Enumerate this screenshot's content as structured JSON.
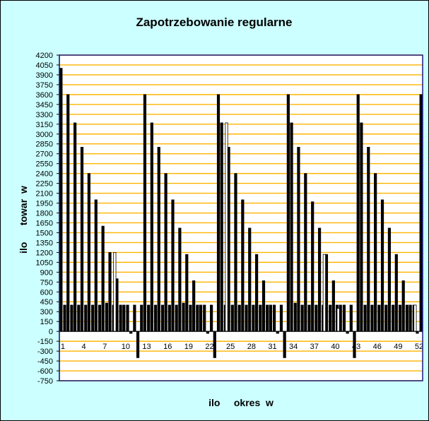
{
  "chart_data": {
    "type": "bar",
    "title": "Zapotrzebowanie regularne",
    "xlabel": "ilo     okres  w",
    "ylabel": "ilo      towar  w",
    "ylim": [
      -750,
      4200
    ],
    "y_ticks": [
      4200,
      4050,
      3900,
      3750,
      3600,
      3450,
      3300,
      3150,
      3000,
      2850,
      2700,
      2550,
      2400,
      2250,
      2100,
      1950,
      1800,
      1650,
      1500,
      1350,
      1200,
      1050,
      900,
      750,
      600,
      450,
      300,
      150,
      0,
      -150,
      -300,
      -450,
      -600,
      -750
    ],
    "x_tick_labels": [
      "1",
      "4",
      "7",
      "10",
      "13",
      "16",
      "19",
      "22",
      "25",
      "28",
      "31",
      "34",
      "37",
      "40",
      "43",
      "46",
      "49",
      "52"
    ],
    "x_tick_periods": [
      1,
      4,
      7,
      10,
      13,
      16,
      19,
      22,
      25,
      28,
      31,
      34,
      37,
      40,
      43,
      46,
      49,
      52
    ],
    "grid": true,
    "legend": "none",
    "colors": {
      "background": "#ccffff",
      "plot_area": "#ffffff",
      "grid": "#ffb400",
      "axis": "#000000",
      "plot_border": "#1a1a80",
      "bar_outline": "#000000"
    },
    "categories": [
      1,
      2,
      3,
      4,
      5,
      6,
      7,
      8,
      9,
      10,
      11,
      12,
      13,
      14,
      15,
      16,
      17,
      18,
      19,
      20,
      21,
      22,
      23,
      24,
      25,
      26,
      27,
      28,
      29,
      30,
      31,
      32,
      33,
      34,
      35,
      36,
      37,
      38,
      39,
      40,
      41,
      42,
      43,
      44,
      45,
      46,
      47,
      48,
      49,
      50,
      51,
      52
    ],
    "series": [
      {
        "fill": "#000000",
        "values": [
          4000,
          3600,
          3170,
          2800,
          2400,
          2000,
          1600,
          1200,
          800,
          400,
          -30,
          -400,
          3600,
          3170,
          2800,
          2400,
          2000,
          1570,
          1170,
          770,
          400,
          -30,
          -400,
          3170,
          2800,
          2400,
          2000,
          1570,
          1170,
          770,
          400,
          -30,
          -400,
          3170,
          2800,
          2400,
          1970,
          1570,
          1170,
          770,
          400,
          -30,
          -400,
          3170,
          2800,
          2400,
          2000,
          1570,
          1170,
          770,
          400,
          -30
        ]
      },
      {
        "fill": "#000000",
        "values": [
          400,
          400,
          400,
          400,
          400,
          400,
          430,
          400,
          400,
          400,
          400,
          400,
          400,
          400,
          400,
          400,
          400,
          430,
          400,
          400,
          400,
          400,
          3600,
          400,
          400,
          400,
          400,
          400,
          400,
          400,
          400,
          400,
          3600,
          430,
          400,
          400,
          400,
          400,
          400,
          400,
          400,
          400,
          3600,
          400,
          400,
          400,
          400,
          400,
          400,
          400,
          400,
          3600
        ]
      },
      {
        "fill": "#ffffff",
        "values": [
          0,
          0,
          0,
          0,
          0,
          0,
          0,
          1200,
          0,
          0,
          0,
          0,
          0,
          0,
          0,
          0,
          0,
          0,
          0,
          0,
          0,
          0,
          0,
          3170,
          0,
          0,
          0,
          0,
          0,
          0,
          0,
          0,
          0,
          0,
          0,
          0,
          0,
          1170,
          0,
          350,
          0,
          0,
          0,
          0,
          0,
          0,
          0,
          0,
          0,
          0,
          400,
          0
        ]
      }
    ]
  }
}
